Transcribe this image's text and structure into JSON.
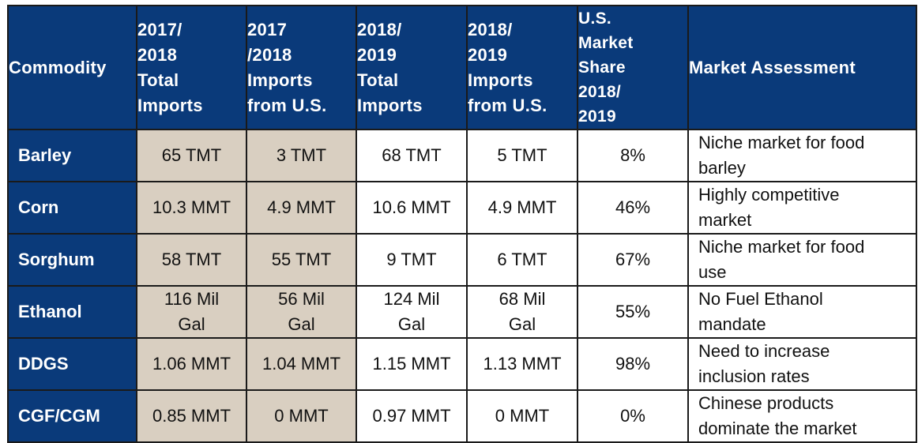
{
  "table": {
    "headers": [
      {
        "key": "commodity",
        "lines": [
          "Commodity"
        ]
      },
      {
        "key": "imp1718",
        "lines": [
          "2017/",
          "2018",
          "Total",
          "Imports"
        ]
      },
      {
        "key": "us1718",
        "lines": [
          "2017",
          "/2018",
          "Imports",
          "from U.S."
        ]
      },
      {
        "key": "imp1819",
        "lines": [
          "2018/",
          "2019",
          "Total",
          "Imports"
        ]
      },
      {
        "key": "us1819",
        "lines": [
          "2018/",
          "2019",
          "Imports",
          "from U.S."
        ]
      },
      {
        "key": "share",
        "lines": [
          "U.S.",
          "Market",
          "Share",
          "2018/",
          "2019"
        ]
      },
      {
        "key": "assess",
        "lines": [
          "Market Assessment"
        ]
      }
    ],
    "rows": [
      {
        "commodity": "Barley",
        "imp1718": [
          "65 TMT"
        ],
        "us1718": [
          "3 TMT"
        ],
        "imp1819": [
          "68 TMT"
        ],
        "us1819": [
          "5 TMT"
        ],
        "share": "8%",
        "assess": [
          "Niche market for food",
          "barley"
        ]
      },
      {
        "commodity": "Corn",
        "imp1718": [
          "10.3 MMT"
        ],
        "us1718": [
          "4.9 MMT"
        ],
        "imp1819": [
          "10.6 MMT"
        ],
        "us1819": [
          "4.9 MMT"
        ],
        "share": "46%",
        "assess": [
          "Highly competitive",
          "market"
        ]
      },
      {
        "commodity": "Sorghum",
        "imp1718": [
          "58 TMT"
        ],
        "us1718": [
          "55 TMT"
        ],
        "imp1819": [
          "9 TMT"
        ],
        "us1819": [
          "6 TMT"
        ],
        "share": "67%",
        "assess": [
          "Niche market for food",
          "use"
        ]
      },
      {
        "commodity": "Ethanol",
        "imp1718": [
          "116 Mil",
          "Gal"
        ],
        "us1718": [
          "56 Mil",
          "Gal"
        ],
        "imp1819": [
          "124 Mil",
          "Gal"
        ],
        "us1819": [
          "68 Mil",
          "Gal"
        ],
        "share": "55%",
        "assess": [
          "No Fuel Ethanol",
          "mandate"
        ]
      },
      {
        "commodity": "DDGS",
        "imp1718": [
          "1.06 MMT"
        ],
        "us1718": [
          "1.04 MMT"
        ],
        "imp1819": [
          "1.15 MMT"
        ],
        "us1819": [
          "1.13 MMT"
        ],
        "share": "98%",
        "assess": [
          "Need to increase",
          "inclusion rates"
        ]
      },
      {
        "commodity": "CGF/CGM",
        "imp1718": [
          "0.85 MMT"
        ],
        "us1718": [
          "0 MMT"
        ],
        "imp1819": [
          "0.97 MMT"
        ],
        "us1819": [
          "0 MMT"
        ],
        "share": "0%",
        "assess": [
          "Chinese products",
          "dominate the market"
        ]
      }
    ]
  },
  "colors": {
    "header_bg": "#0a3a7a",
    "shaded_cell": "#d9cfc1",
    "border": "#1a1a1a"
  }
}
